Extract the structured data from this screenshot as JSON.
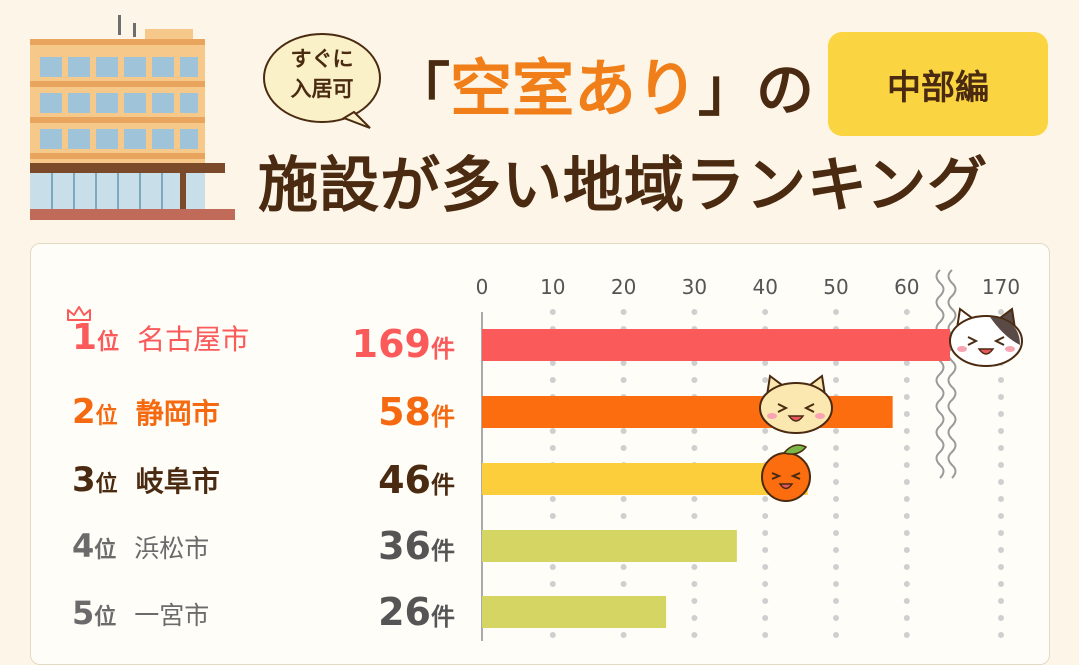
{
  "header": {
    "bubble_line1": "すぐに",
    "bubble_line2": "入居可",
    "title_open": "「",
    "title_highlight": "空室あり",
    "title_close": "」の",
    "title_line2": "施設が多い地域ランキング",
    "region": "中部編"
  },
  "chart_data": {
    "type": "bar",
    "orientation": "horizontal",
    "categories": [
      "名古屋市",
      "静岡市",
      "岐阜市",
      "浜松市",
      "一宮市"
    ],
    "values": [
      169,
      58,
      46,
      36,
      26
    ],
    "x_ticks": [
      "0",
      "10",
      "20",
      "30",
      "40",
      "50",
      "60",
      "170"
    ],
    "axis_break": "between 60 and 170",
    "grid": true,
    "colors": [
      "#fa5a5a",
      "#fb6d0f",
      "#fcce3c",
      "#d5d563",
      "#d5d563"
    ]
  },
  "rows": [
    {
      "rank": "1",
      "suffix": "位",
      "city": "名古屋市",
      "count": "169",
      "unit": "件",
      "color": "#fa5a5a"
    },
    {
      "rank": "2",
      "suffix": "位",
      "city": "静岡市",
      "count": "58",
      "unit": "件",
      "color": "#f56a10"
    },
    {
      "rank": "3",
      "suffix": "位",
      "city": "岐阜市",
      "count": "46",
      "unit": "件",
      "color": "#4a2a10"
    },
    {
      "rank": "4",
      "suffix": "位",
      "city": "浜松市",
      "count": "36",
      "unit": "件",
      "color": "#6b6b6b"
    },
    {
      "rank": "5",
      "suffix": "位",
      "city": "一宮市",
      "count": "26",
      "unit": "件",
      "color": "#6b6b6b"
    }
  ]
}
